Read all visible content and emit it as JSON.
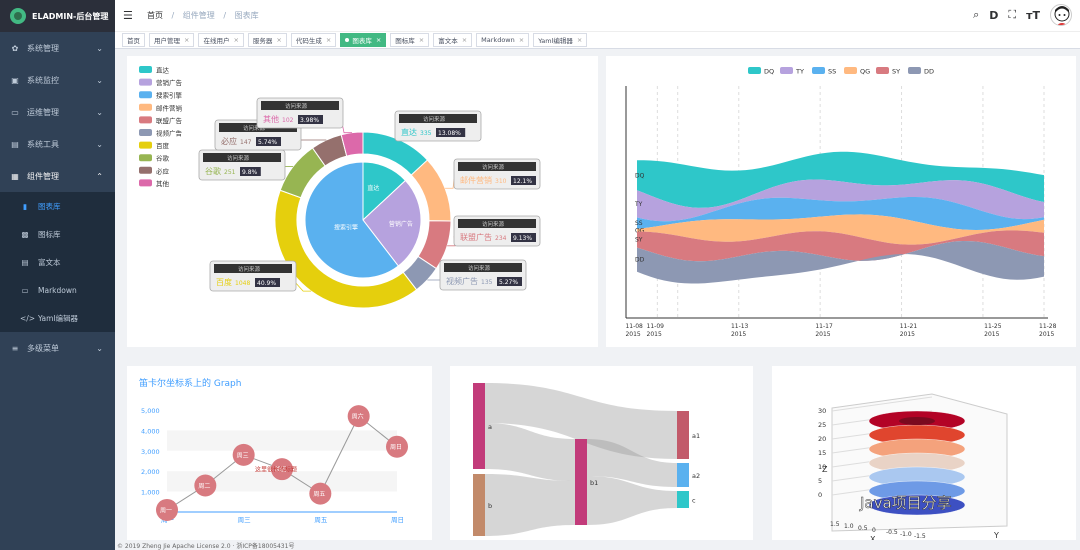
{
  "app": {
    "logo_text": "ELADMIN-后台管理"
  },
  "sidebar": {
    "menus": [
      {
        "icon": "gear-icon",
        "glyph": "✿",
        "label": "系统管理"
      },
      {
        "icon": "monitor-icon",
        "glyph": "▣",
        "label": "系统监控"
      },
      {
        "icon": "server-icon",
        "glyph": "▭",
        "label": "运维管理"
      },
      {
        "icon": "toolbox-icon",
        "glyph": "▤",
        "label": "系统工具"
      },
      {
        "icon": "component-icon",
        "glyph": "▦",
        "label": "组件管理"
      }
    ],
    "sub_items": [
      {
        "icon": "chart-icon",
        "glyph": "▮",
        "label": "图表库",
        "active": true
      },
      {
        "icon": "icons-icon",
        "glyph": "▩",
        "label": "图标库"
      },
      {
        "icon": "richtext-icon",
        "glyph": "▤",
        "label": "富文本"
      },
      {
        "icon": "markdown-icon",
        "glyph": "▭",
        "label": "Markdown"
      },
      {
        "icon": "code-icon",
        "glyph": "</>",
        "label": "Yaml编辑器"
      }
    ],
    "last_menu": {
      "icon": "menu-icon",
      "glyph": "≡",
      "label": "多级菜单"
    }
  },
  "navbar": {
    "breadcrumb": [
      "首页",
      "组件管理",
      "图表库"
    ],
    "icons": [
      "search-icon",
      "doc-icon",
      "fullscreen-icon",
      "font-size-icon",
      "avatar"
    ]
  },
  "tags": [
    {
      "label": "首页",
      "closable": false
    },
    {
      "label": "用户管理",
      "closable": true
    },
    {
      "label": "在线用户",
      "closable": true
    },
    {
      "label": "服务器",
      "closable": true
    },
    {
      "label": "代码生成",
      "closable": true
    },
    {
      "label": "图表库",
      "closable": true,
      "active": true
    },
    {
      "label": "图标库",
      "closable": true
    },
    {
      "label": "富文本",
      "closable": true
    },
    {
      "label": "Markdown",
      "closable": true
    },
    {
      "label": "Yaml编辑器",
      "closable": true
    }
  ],
  "colors": {
    "accent": "#42b983",
    "sidebar": "#304156",
    "active_menu": "#409eff"
  },
  "chart_data": [
    {
      "type": "pie",
      "legend": [
        "直达",
        "营销广告",
        "搜索引擎",
        "邮件营销",
        "联盟广告",
        "视频广告",
        "百度",
        "谷歌",
        "必应",
        "其他"
      ],
      "legend_colors": [
        "#2ec7c9",
        "#b6a2de",
        "#5ab1ef",
        "#ffb980",
        "#d87a80",
        "#8d98b3",
        "#e5cf0d",
        "#97b552",
        "#95706d",
        "#dc69aa"
      ],
      "inner": [
        {
          "name": "直达",
          "value": 335,
          "color": "#2ec7c9"
        },
        {
          "name": "营销广告",
          "value": 679,
          "color": "#b6a2de"
        },
        {
          "name": "搜索引擎",
          "value": 1548,
          "color": "#5ab1ef"
        }
      ],
      "outer": [
        {
          "name": "直达",
          "value": 335,
          "pct": "13.08%",
          "color": "#2ec7c9"
        },
        {
          "name": "邮件营销",
          "value": 310,
          "pct": "12.1%",
          "color": "#ffb980"
        },
        {
          "name": "联盟广告",
          "value": 234,
          "pct": "9.13%",
          "color": "#d87a80"
        },
        {
          "name": "视频广告",
          "value": 135,
          "pct": "5.27%",
          "color": "#8d98b3"
        },
        {
          "name": "百度",
          "value": 1048,
          "pct": "40.9%",
          "color": "#e5cf0d"
        },
        {
          "name": "谷歌",
          "value": 251,
          "pct": "9.8%",
          "color": "#97b552"
        },
        {
          "name": "必应",
          "value": 147,
          "pct": "5.74%",
          "color": "#95706d"
        },
        {
          "name": "其他",
          "value": 102,
          "pct": "3.98%",
          "color": "#dc69aa"
        }
      ],
      "callout_title": "访问来源"
    },
    {
      "type": "area",
      "legend": [
        "DQ",
        "TY",
        "SS",
        "QG",
        "SY",
        "DD"
      ],
      "colors": [
        "#2ec7c9",
        "#b6a2de",
        "#5ab1ef",
        "#ffb980",
        "#d87a80",
        "#8d98b3"
      ],
      "x_ticks": [
        "11-08\n2015",
        "11-09\n2015",
        "11-13\n2015",
        "11-17\n2015",
        "11-21\n2015",
        "11-25\n2015",
        "11-28\n2015"
      ],
      "x_range": [
        "2015-11-08",
        "2015-11-28"
      ]
    },
    {
      "type": "line",
      "title": "笛卡尔坐标系上的 Graph",
      "y_ticks": [
        "5,000",
        "4,000",
        "3,000",
        "2,000",
        "1,000"
      ],
      "ylim": [
        0,
        5000
      ],
      "x_ticks": [
        "周一",
        "周三",
        "周五",
        "周日"
      ],
      "nodes": [
        {
          "name": "周一",
          "value": 100
        },
        {
          "name": "周二",
          "value": 1300
        },
        {
          "name": "周三",
          "value": 2800
        },
        {
          "name": "周四",
          "value": 2100
        },
        {
          "name": "周五",
          "value": 900
        },
        {
          "name": "周六",
          "value": 4700
        },
        {
          "name": "周日",
          "value": 3200
        }
      ],
      "annotation": "这里很长的标题"
    },
    {
      "type": "sankey",
      "nodes": [
        "a",
        "b",
        "b1",
        "a1",
        "a2",
        "c"
      ]
    },
    {
      "type": "surface3d",
      "z_ticks": [
        "30",
        "25",
        "20",
        "15",
        "10",
        "5",
        "0"
      ],
      "axis_labels": [
        "Z",
        "X",
        "Y"
      ],
      "tick_labels": [
        "1.5",
        "1.0",
        "0.5",
        "0",
        "-0.5",
        "-1.0",
        "-1.5"
      ]
    }
  ],
  "watermark": "Java项目分享",
  "footer": "© 2019 Zheng Jie Apache License 2.0 · 浙ICP备18005431号"
}
